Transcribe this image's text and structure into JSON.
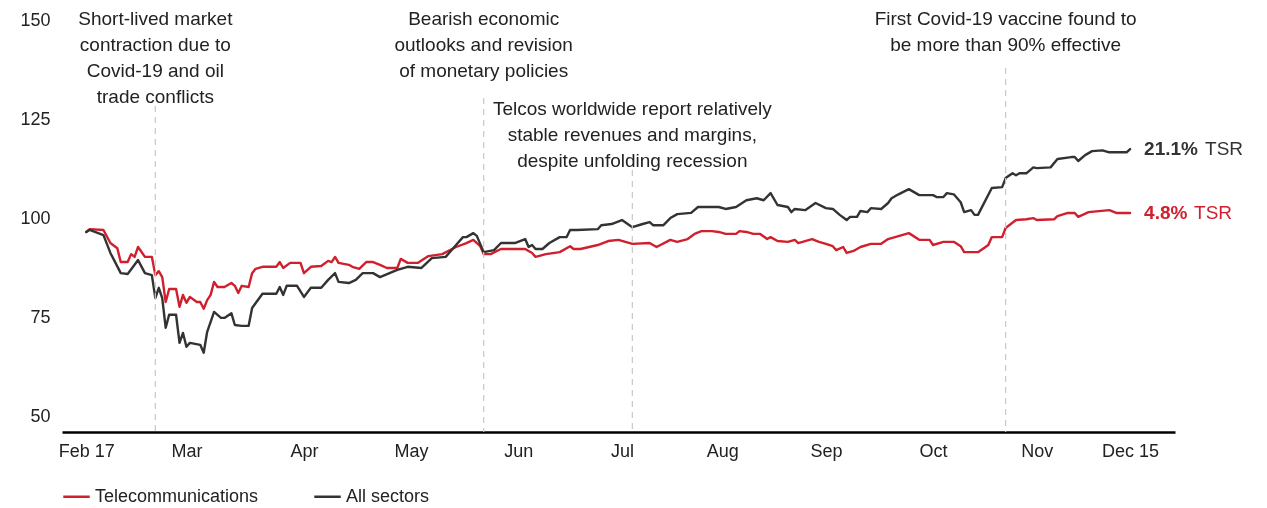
{
  "chart_data": {
    "type": "line",
    "xlim": [
      "--02-10",
      "--12-28"
    ],
    "ylim": [
      46,
      150
    ],
    "yticks": [
      50,
      75,
      100,
      125,
      150
    ],
    "xticks": [
      {
        "value": "--02-17",
        "label": "Feb 17"
      },
      {
        "value": "--03-17",
        "label": "Mar"
      },
      {
        "value": "--04-20",
        "label": "Apr"
      },
      {
        "value": "--05-21",
        "label": "May"
      },
      {
        "value": "--06-21",
        "label": "Jun"
      },
      {
        "value": "--07-21",
        "label": "Jul"
      },
      {
        "value": "--08-19",
        "label": "Aug"
      },
      {
        "value": "--09-18",
        "label": "Sep"
      },
      {
        "value": "--10-19",
        "label": "Oct"
      },
      {
        "value": "--11-18",
        "label": "Nov"
      },
      {
        "value": "--12-15",
        "label": "Dec 15"
      }
    ],
    "grid": false,
    "legend": "bottom",
    "series": [
      {
        "name": "Telecommunications",
        "color": "#d0202e",
        "x": [
          "--02-17",
          "--02-18",
          "--02-22",
          "--02-24",
          "--02-26",
          "--02-27",
          "--02-29",
          "--03-01",
          "--03-02",
          "--03-03",
          "--03-05",
          "--03-07",
          "--03-08",
          "--03-09",
          "--03-10",
          "--03-11",
          "--03-12",
          "--03-14",
          "--03-15",
          "--03-16",
          "--03-17",
          "--03-18",
          "--03-20",
          "--03-21",
          "--03-22",
          "--03-23",
          "--03-24",
          "--03-25",
          "--03-26",
          "--03-28",
          "--03-30",
          "--03-31",
          "--04-01",
          "--04-02",
          "--04-04",
          "--04-05",
          "--04-06",
          "--04-08",
          "--04-12",
          "--04-13",
          "--04-14",
          "--04-16",
          "--04-19",
          "--04-20",
          "--04-22",
          "--04-25",
          "--04-27",
          "--04-28",
          "--04-29",
          "--04-30",
          "--05-03",
          "--05-04",
          "--05-06",
          "--05-08",
          "--05-10",
          "--05-12",
          "--05-14",
          "--05-17",
          "--05-18",
          "--05-20",
          "--05-23",
          "--05-26",
          "--05-30",
          "--06-03",
          "--06-06",
          "--06-08",
          "--06-10",
          "--06-11",
          "--06-13",
          "--06-16",
          "--06-23",
          "--06-25",
          "--06-26",
          "--06-29",
          "--07-03",
          "--07-06",
          "--07-07",
          "--07-09",
          "--07-14",
          "--07-17",
          "--07-20",
          "--07-24",
          "--07-29",
          "--07-31",
          "--08-04",
          "--08-06",
          "--08-09",
          "--08-11",
          "--08-13",
          "--08-16",
          "--08-18",
          "--08-20",
          "--08-23",
          "--08-24",
          "--08-26",
          "--08-28",
          "--08-30",
          "--09-01",
          "--09-02",
          "--09-04",
          "--09-07",
          "--09-09",
          "--09-10",
          "--09-14",
          "--09-16",
          "--09-18",
          "--09-20",
          "--09-21",
          "--09-23",
          "--09-24",
          "--09-26",
          "--09-28",
          "--10-01",
          "--10-04",
          "--10-06",
          "--10-08",
          "--10-12",
          "--10-15",
          "--10-18",
          "--10-19",
          "--10-22",
          "--10-25",
          "--10-27",
          "--10-28",
          "--11-01",
          "--11-04",
          "--11-05",
          "--11-08",
          "--11-09",
          "--11-12",
          "--11-15",
          "--11-17",
          "--11-18",
          "--11-23",
          "--11-24",
          "--11-27",
          "--11-29",
          "--11-30",
          "--12-03",
          "--12-09",
          "--12-11",
          "--12-15"
        ],
        "values": [
          96.5,
          97.2,
          97,
          93.7,
          92.4,
          88.9,
          88.9,
          90.9,
          90.2,
          92.7,
          90.2,
          90.2,
          85.6,
          86.6,
          85.1,
          78.8,
          82.1,
          82.1,
          77.6,
          80.6,
          78.6,
          80.1,
          78.8,
          78.8,
          77.1,
          79.3,
          80.6,
          83.9,
          82.6,
          82.6,
          83.6,
          82.9,
          81.1,
          82.9,
          82.6,
          86.1,
          87.2,
          87.7,
          87.7,
          88.9,
          87.4,
          88.7,
          88.7,
          86.1,
          87.7,
          87.9,
          89.2,
          88.9,
          90.2,
          88.7,
          88.2,
          87.7,
          87.2,
          88.9,
          88.9,
          88.2,
          87.4,
          87.4,
          89.7,
          88.7,
          88.7,
          90.4,
          90.9,
          92.7,
          93.7,
          94.5,
          92.9,
          90.9,
          90.9,
          92.2,
          92.2,
          91.2,
          90.2,
          90.9,
          91.4,
          92.9,
          92.2,
          92.2,
          93.2,
          94.2,
          94.5,
          93.5,
          93.7,
          92.7,
          94.5,
          94,
          94.7,
          96,
          96.7,
          96.7,
          96.5,
          96,
          96,
          96.7,
          96.5,
          96,
          96,
          94.7,
          95.2,
          94.2,
          94,
          94.5,
          93.7,
          94.7,
          94,
          93.5,
          92.9,
          91.9,
          92.7,
          91.2,
          91.7,
          92.7,
          93.5,
          93.5,
          94.7,
          95.2,
          96.2,
          94.5,
          94.5,
          93.2,
          94,
          94,
          92.9,
          91.4,
          91.4,
          93.2,
          95.2,
          95.2,
          97.5,
          99.5,
          99.7,
          100,
          99.5,
          99.7,
          100.5,
          101.3,
          101.3,
          100.3,
          101.5,
          102,
          101.3,
          101.3
        ]
      },
      {
        "name": "All sectors",
        "color": "#333333",
        "x": [
          "--02-17",
          "--02-18",
          "--02-22",
          "--02-24",
          "--02-27",
          "--02-29",
          "--03-02",
          "--03-03",
          "--03-05",
          "--03-07",
          "--03-08",
          "--03-09",
          "--03-10",
          "--03-11",
          "--03-12",
          "--03-14",
          "--03-15",
          "--03-16",
          "--03-17",
          "--03-18",
          "--03-21",
          "--03-22",
          "--03-23",
          "--03-25",
          "--03-27",
          "--03-28",
          "--03-30",
          "--03-31",
          "--04-02",
          "--04-04",
          "--04-05",
          "--04-08",
          "--04-12",
          "--04-13",
          "--04-14",
          "--04-15",
          "--04-18",
          "--04-20",
          "--04-22",
          "--04-25",
          "--04-27",
          "--04-29",
          "--04-30",
          "--05-03",
          "--05-05",
          "--05-07",
          "--05-10",
          "--05-12",
          "--05-17",
          "--05-20",
          "--05-24",
          "--05-27",
          "--05-31",
          "--06-03",
          "--06-05",
          "--06-06",
          "--06-08",
          "--06-09",
          "--06-11",
          "--06-14",
          "--06-16",
          "--06-20",
          "--06-23",
          "--06-24",
          "--06-25",
          "--06-26",
          "--06-28",
          "--06-30",
          "--07-03",
          "--07-05",
          "--07-06",
          "--07-08",
          "--07-14",
          "--07-15",
          "--07-18",
          "--07-21",
          "--07-24",
          "--07-27",
          "--07-29",
          "--07-30",
          "--08-02",
          "--08-04",
          "--08-06",
          "--08-10",
          "--08-12",
          "--08-15",
          "--08-18",
          "--08-20",
          "--08-23",
          "--08-26",
          "--08-29",
          "--08-31",
          "--09-02",
          "--09-04",
          "--09-07",
          "--09-08",
          "--09-09",
          "--09-12",
          "--09-15",
          "--09-18",
          "--09-20",
          "--09-22",
          "--09-24",
          "--09-25",
          "--09-27",
          "--09-28",
          "--09-30",
          "--10-01",
          "--10-04",
          "--10-06",
          "--10-07",
          "--10-09",
          "--10-12",
          "--10-15",
          "--10-19",
          "--10-20",
          "--10-22",
          "--10-23",
          "--10-25",
          "--10-27",
          "--10-28",
          "--10-30",
          "--10-31",
          "--11-01",
          "--11-05",
          "--11-08",
          "--11-09",
          "--11-11",
          "--11-12",
          "--11-13",
          "--11-15",
          "--11-17",
          "--11-18",
          "--11-22",
          "--11-24",
          "--11-28",
          "--11-29",
          "--11-30",
          "--12-02",
          "--12-04",
          "--12-07",
          "--12-09",
          "--12-14",
          "--12-15"
        ],
        "values": [
          96.5,
          97,
          95.7,
          91.2,
          86.1,
          85.9,
          88.2,
          89.4,
          86.1,
          85.6,
          79.8,
          82.4,
          79.8,
          72.3,
          75.6,
          75.6,
          68.5,
          71,
          67.5,
          68.5,
          68,
          66,
          71.3,
          76.3,
          74.8,
          74.8,
          76,
          73,
          72.8,
          72.8,
          77.3,
          80.9,
          80.9,
          82.6,
          80.6,
          82.9,
          82.9,
          80.1,
          82.4,
          82.4,
          84.4,
          86.1,
          83.9,
          83.6,
          84.4,
          86.1,
          86.1,
          85.1,
          86.9,
          87.7,
          87.4,
          89.9,
          90.2,
          93.2,
          95.2,
          95.2,
          96.2,
          95.5,
          91.4,
          91.9,
          93.7,
          93.7,
          94.7,
          92.7,
          93.2,
          92.2,
          92.2,
          93.7,
          95.2,
          95.2,
          97,
          97,
          97.2,
          98.2,
          98.5,
          99.5,
          97.7,
          98.5,
          99,
          98.2,
          98.2,
          100,
          101,
          101.3,
          102.8,
          102.8,
          102.8,
          102.3,
          102.8,
          104.5,
          105,
          104.5,
          106.3,
          103.3,
          102.8,
          101.5,
          102.3,
          102,
          103.8,
          102.5,
          102.3,
          100.8,
          99.5,
          100.3,
          100.3,
          101.8,
          101.5,
          102.5,
          102.3,
          103.8,
          105,
          106,
          107.3,
          105.8,
          105.8,
          105.3,
          105.3,
          106.3,
          106,
          104,
          101.5,
          102,
          100.8,
          100.8,
          107.6,
          107.8,
          110.1,
          111.3,
          110.8,
          111.3,
          111.3,
          112.8,
          112.6,
          112.8,
          114.9,
          115.4,
          115.4,
          114.4,
          115.9,
          116.9,
          117.1,
          116.6,
          116.6,
          117.4
        ]
      }
    ],
    "ref_lines": [
      {
        "axis": "x",
        "value": "--03-08",
        "label": "Short-lived market\ncontraction due to\nCovid-19 and oil\ntrade conflicts",
        "color": "#c8c8c8",
        "line_style": "dashed"
      },
      {
        "axis": "x",
        "value": "--06-11",
        "label": "Bearish economic\noutlooks and revision\nof monetary policies",
        "color": "#c8c8c8",
        "line_style": "dashed"
      },
      {
        "axis": "x",
        "value": "--07-24",
        "label": "Telcos worldwide report relatively\nstable revenues and margins,\ndespite unfolding recession",
        "color": "#c8c8c8",
        "line_style": "dashed"
      },
      {
        "axis": "x",
        "value": "--11-09",
        "label": "First Covid-19 vaccine found to\nbe more than 90% effective",
        "color": "#c8c8c8",
        "line_style": "dashed"
      }
    ],
    "annotations": [
      {
        "text": "21.1% TSR",
        "x": "--12-15",
        "y": 117.4
      },
      {
        "text": "4.8% TSR",
        "x": "--12-15",
        "y": 101.3
      }
    ]
  }
}
